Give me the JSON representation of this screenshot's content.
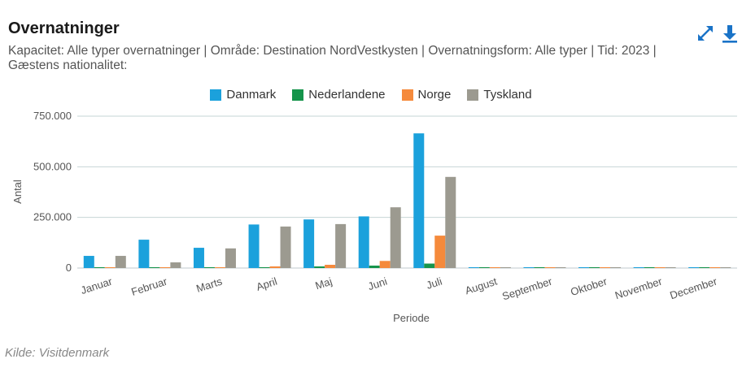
{
  "header": {
    "title": "Overnatninger",
    "subtitle": "Kapacitet: Alle typer overnatninger | Område: Destination NordVestkysten | Overnatningsform: Alle typer | Tid: 2023 | Gæstens nationalitet:"
  },
  "toolbar": {
    "fullscreen_icon": "expand-icon",
    "download_icon": "download-icon"
  },
  "colors": {
    "accent": "#1a73c7"
  },
  "source": "Kilde: Visitdenmark",
  "chart_data": {
    "type": "bar",
    "categories": [
      "Januar",
      "Februar",
      "Marts",
      "April",
      "Maj",
      "Juni",
      "Juli",
      "August",
      "September",
      "Oktober",
      "November",
      "December"
    ],
    "series": [
      {
        "name": "Danmark",
        "color": "#1ba1dc",
        "values": [
          60000,
          140000,
          100000,
          215000,
          240000,
          255000,
          665000,
          1000,
          1000,
          1000,
          1000,
          1000
        ]
      },
      {
        "name": "Nederlandene",
        "color": "#15944b",
        "values": [
          3000,
          2000,
          2000,
          3000,
          8000,
          12000,
          22000,
          500,
          500,
          500,
          500,
          500
        ]
      },
      {
        "name": "Norge",
        "color": "#f58a3c",
        "values": [
          2000,
          2000,
          2000,
          8000,
          16000,
          35000,
          160000,
          500,
          500,
          500,
          500,
          500
        ]
      },
      {
        "name": "Tyskland",
        "color": "#9c9a90",
        "values": [
          60000,
          28000,
          97000,
          205000,
          217000,
          300000,
          450000,
          1000,
          1000,
          1000,
          1000,
          1000
        ]
      }
    ],
    "xlabel": "Periode",
    "ylabel": "Antal",
    "ylim": [
      0,
      750000
    ],
    "yticks": [
      0,
      250000,
      500000,
      750000
    ],
    "ytick_labels": [
      "0",
      "250.000",
      "500.000",
      "750.000"
    ],
    "grid": true,
    "legend_position": "top-center"
  }
}
